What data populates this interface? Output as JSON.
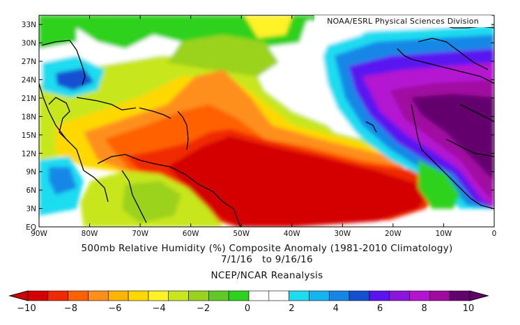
{
  "credit": "NOAA/ESRL Physical Sciences Division",
  "title_line1": "500mb Relative Humidity (%) Composite Anomaly (1981-2010 Climatology)",
  "title_line2": "7/1/16   to 9/16/16",
  "title_line3": "NCEP/NCAR Reanalysis",
  "lat_labels": [
    "EQ",
    "3N",
    "6N",
    "9N",
    "12N",
    "15N",
    "18N",
    "21N",
    "24N",
    "27N",
    "30N",
    "33N"
  ],
  "lon_labels": [
    "90W",
    "80W",
    "70W",
    "60W",
    "50W",
    "40W",
    "30W",
    "20W",
    "10W",
    "0"
  ],
  "colorbar": {
    "labels": [
      "-10",
      "-8",
      "-6",
      "-4",
      "-2",
      "0",
      "2",
      "4",
      "6",
      "8",
      "10"
    ],
    "colors": [
      "#d40000",
      "#f02a00",
      "#ff6000",
      "#ff8f1a",
      "#ffb400",
      "#ffd800",
      "#fff226",
      "#c8e61e",
      "#9bd21e",
      "#62c828",
      "#2dd21e",
      "#ffffff",
      "#ffffff",
      "#1edcf0",
      "#14b4f0",
      "#1487e6",
      "#1450d2",
      "#5a14f0",
      "#8c14dc",
      "#b414d2",
      "#a00aa0",
      "#64006e"
    ]
  },
  "chart_data": {
    "type": "heatmap",
    "title": "500mb Relative Humidity (%) Composite Anomaly (1981-2010 Climatology)",
    "subtitle": "7/1/16 to 9/16/16",
    "source": "NCEP/NCAR Reanalysis",
    "xlim": [
      -90,
      0
    ],
    "ylim": [
      0,
      34.5
    ],
    "x_ticks": [
      -90,
      -80,
      -70,
      -60,
      -50,
      -40,
      -30,
      -20,
      -10,
      0
    ],
    "y_ticks": [
      0,
      3,
      6,
      9,
      12,
      15,
      18,
      21,
      24,
      27,
      30,
      33
    ],
    "contour_levels": [
      -10,
      -9,
      -8,
      -7,
      -6,
      -5,
      -4,
      -3,
      -2,
      -1,
      0,
      1,
      2,
      3,
      4,
      5,
      6,
      7,
      8,
      9,
      10
    ],
    "regions": [
      {
        "area": "central tropical Atlantic (50W-15W, 0-13N)",
        "anomaly": "<= -10"
      },
      {
        "area": "north of South America (60W-50W, 8-12N)",
        "anomaly": "<= -10"
      },
      {
        "area": "Caribbean Sea (80W-60W, 12-20N)",
        "anomaly": "-8 to -4"
      },
      {
        "area": "subtropical Atlantic (65W-45W, 20-28N)",
        "anomaly": "-8 to -6"
      },
      {
        "area": "northern South America (75W-55W, 0-8N)",
        "anomaly": "-4 to -2"
      },
      {
        "area": "eastern subtropical Atlantic (30W-20W, 24-31N)",
        "anomaly": "2 to 6"
      },
      {
        "area": "West Africa / Sahara (15W-0, 15-28N)",
        "anomaly": ">= 8"
      },
      {
        "area": "eastern Pacific off Central America (90W-85W, 5-10N)",
        "anomaly": "2 to 4"
      },
      {
        "area": "Florida / Bahamas (83W-78W, 23-26N)",
        "anomaly": "2 to 4"
      }
    ]
  }
}
